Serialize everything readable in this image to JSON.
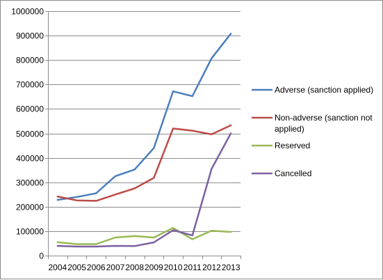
{
  "chart_data": {
    "type": "line",
    "title": "",
    "xlabel": "",
    "ylabel": "",
    "x": [
      "2004",
      "2005",
      "2006",
      "2007",
      "2008",
      "2009",
      "2010",
      "2011",
      "2012",
      "2013"
    ],
    "ylim": [
      0,
      1000000
    ],
    "yticks": [
      "0",
      "100000",
      "200000",
      "300000",
      "400000",
      "500000",
      "600000",
      "700000",
      "800000",
      "900000",
      "1000000"
    ],
    "grid": "horizontal major gridlines",
    "legend_position": "right",
    "series": [
      {
        "name": "Adverse (sanction applied)",
        "legend_lines": [
          "Adverse (sanction applied)"
        ],
        "color": "#4a7ebb",
        "values": [
          228000,
          240000,
          255000,
          325000,
          352000,
          440000,
          672000,
          652000,
          807000,
          908000
        ]
      },
      {
        "name": "Non-adverse (sanction not applied)",
        "legend_lines": [
          "Non-adverse (sanction not",
          "applied)"
        ],
        "color": "#be4b48",
        "values": [
          242000,
          226000,
          224000,
          250000,
          275000,
          318000,
          520000,
          511000,
          496000,
          533000
        ]
      },
      {
        "name": "Reserved",
        "legend_lines": [
          "Reserved"
        ],
        "color": "#98b954",
        "values": [
          55000,
          47000,
          47000,
          74000,
          80000,
          74000,
          113000,
          67000,
          102000,
          97000
        ]
      },
      {
        "name": "Cancelled",
        "legend_lines": [
          "Cancelled"
        ],
        "color": "#7d60a0",
        "values": [
          40000,
          37000,
          37000,
          40000,
          39000,
          54000,
          104000,
          83000,
          355000,
          500000
        ]
      }
    ]
  }
}
